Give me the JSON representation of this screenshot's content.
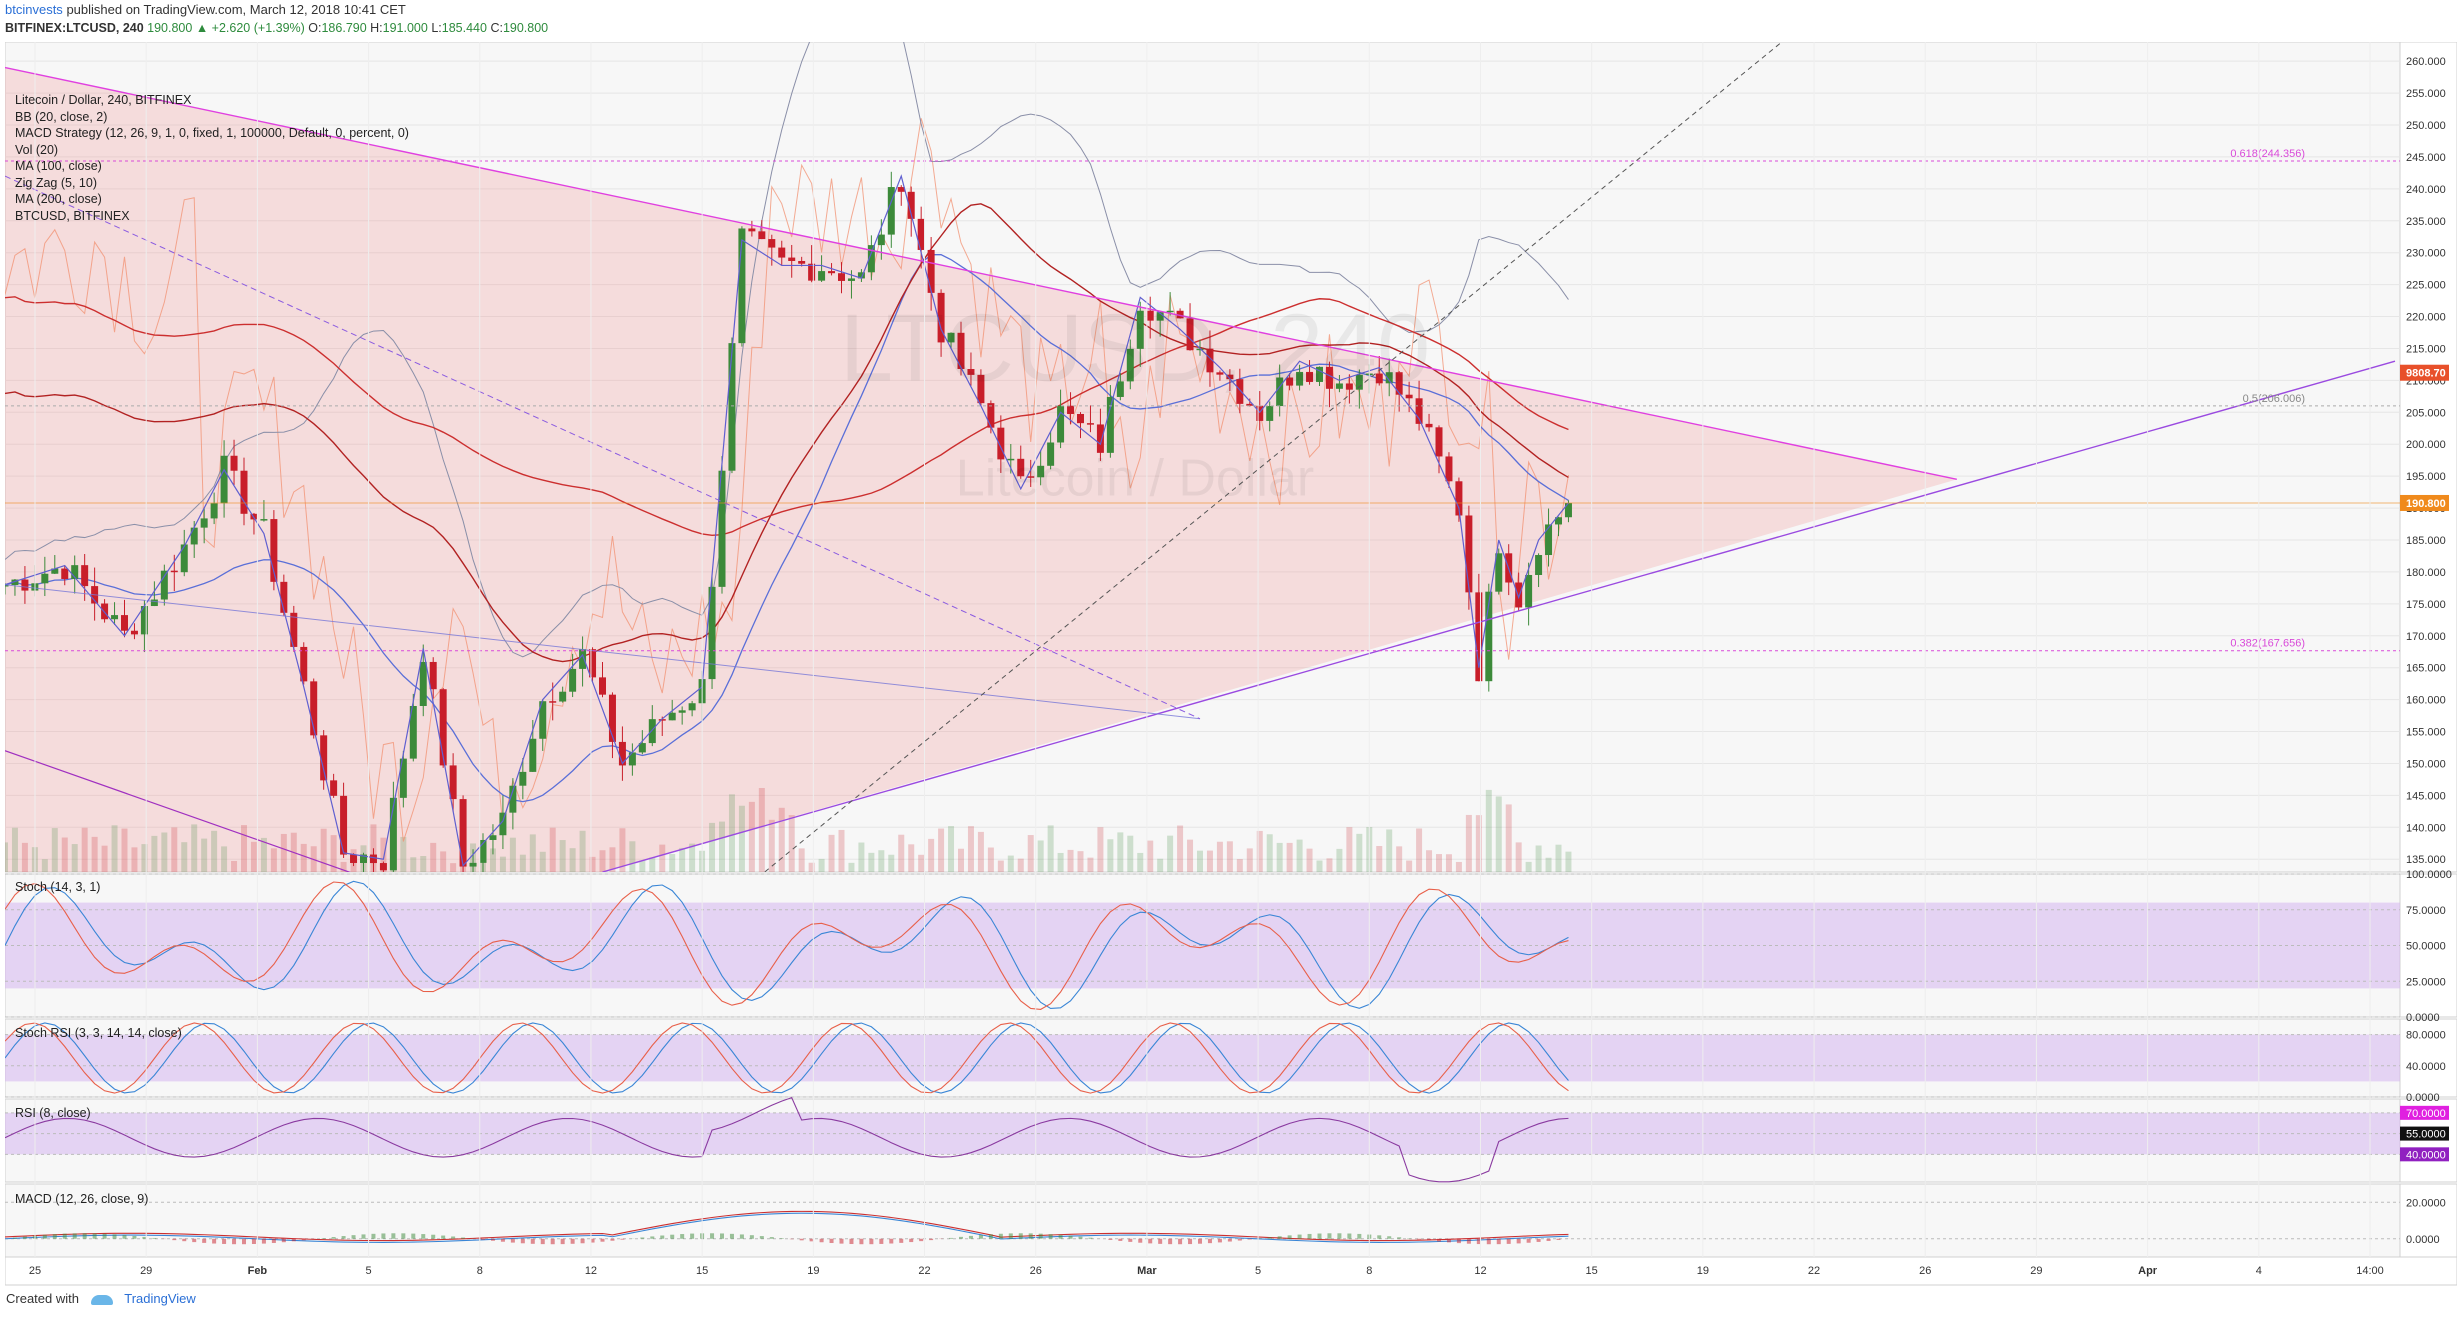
{
  "header": {
    "user": "btcinvests",
    "published_text": "published on TradingView.com, March 12, 2018 10:41 CET",
    "symbol_line": "BITFINEX:LTCUSD, 240",
    "last": "190.800",
    "change": "▲ +2.620 (+1.39%)",
    "open_label": "O:",
    "open": "186.790",
    "high_label": "H:",
    "high": "191.000",
    "low_label": "L:",
    "low": "185.440",
    "close_label": "C:",
    "close": "190.800"
  },
  "indicators": [
    "Litecoin / Dollar, 240, BITFINEX",
    "BB (20, close, 2)",
    "MACD Strategy (12, 26, 9, 1, 0, fixed, 1, 100000, Default, 0, percent, 0)",
    "Vol (20)",
    "MA (100, close)",
    "Zig Zag (5, 10)",
    "MA (200, close)",
    "BTCUSD, BITFINEX"
  ],
  "watermark": {
    "symbol": "LTCUSD, 240",
    "name": "Litecoin / Dollar"
  },
  "colors": {
    "up": "#3c8a3a",
    "down": "#c81e2a",
    "triangle": "#e040e0",
    "fib": "#d94ad9",
    "bb": "#8a8fa8",
    "ma100": "#b22222",
    "ma200": "#cc2f2f",
    "zigzag": "#5f5fd0",
    "btc": "#f29070",
    "stoch_k": "#3a86d6",
    "stoch_d": "#e8604a",
    "rsi": "#8a3aa0",
    "band": "#d6b7f0",
    "price_tag": "#f08a1c",
    "btc_tag": "#e8502a"
  },
  "chart_data": [
    {
      "type": "candlestick",
      "title": "Litecoin / Dollar, 240, BITFINEX",
      "ylim": [
        133,
        263
      ],
      "x_ticks": [
        "25",
        "29",
        "Feb",
        "5",
        "8",
        "12",
        "15",
        "19",
        "22",
        "26",
        "Mar",
        "5",
        "8",
        "12",
        "15",
        "19",
        "22",
        "26",
        "29",
        "Apr",
        "4",
        "14:00"
      ],
      "y_ticks": [
        "135.000",
        "140.000",
        "145.000",
        "150.000",
        "155.000",
        "160.000",
        "165.000",
        "170.000",
        "175.000",
        "180.000",
        "185.000",
        "190.000",
        "195.000",
        "200.000",
        "205.000",
        "210.000",
        "215.000",
        "220.000",
        "225.000",
        "230.000",
        "235.000",
        "240.000",
        "245.000",
        "250.000",
        "255.000",
        "260.000"
      ],
      "price_path": [
        [
          0,
          178
        ],
        [
          6,
          181
        ],
        [
          12,
          170
        ],
        [
          18,
          184
        ],
        [
          22,
          196
        ],
        [
          26,
          186
        ],
        [
          30,
          162
        ],
        [
          34,
          136
        ],
        [
          38,
          135
        ],
        [
          42,
          168
        ],
        [
          46,
          134
        ],
        [
          50,
          141
        ],
        [
          54,
          160
        ],
        [
          58,
          167
        ],
        [
          62,
          150
        ],
        [
          66,
          157
        ],
        [
          70,
          162
        ],
        [
          74,
          232
        ],
        [
          78,
          228
        ],
        [
          82,
          228
        ],
        [
          86,
          226
        ],
        [
          90,
          242
        ],
        [
          94,
          218
        ],
        [
          98,
          206
        ],
        [
          102,
          193
        ],
        [
          106,
          205
        ],
        [
          110,
          200
        ],
        [
          114,
          223
        ],
        [
          118,
          218
        ],
        [
          122,
          212
        ],
        [
          126,
          205
        ],
        [
          130,
          213
        ],
        [
          134,
          210
        ],
        [
          138,
          212
        ],
        [
          142,
          204
        ],
        [
          146,
          190
        ],
        [
          148,
          165
        ],
        [
          150,
          185
        ],
        [
          152,
          176
        ],
        [
          154,
          185
        ],
        [
          157,
          190.8
        ]
      ],
      "x_span": 240,
      "current_price": 190.8,
      "current_price_label": "190.800",
      "btc_price_label": "9808.70",
      "fib_levels": [
        {
          "price": 244.356,
          "label": "0.618(244.356)"
        },
        {
          "price": 206.006,
          "label": "0.5(206.006)"
        },
        {
          "price": 167.656,
          "label": "0.382(167.656)"
        }
      ],
      "triangle_upper": [
        [
          0,
          259
        ],
        [
          196,
          194.5
        ]
      ],
      "triangle_lower": [
        [
          60,
          133
        ],
        [
          240,
          213
        ]
      ]
    },
    {
      "type": "line",
      "name": "Stoch (14, 3, 1)",
      "ylim": [
        0,
        100
      ],
      "y_ticks": [
        "0.0000",
        "25.0000",
        "50.0000",
        "75.0000",
        "100.0000"
      ],
      "band": [
        20,
        80
      ]
    },
    {
      "type": "line",
      "name": "Stoch RSI (3, 3, 14, 14, close)",
      "ylim": [
        0,
        100
      ],
      "y_ticks": [
        "0.0000",
        "40.0000",
        "80.0000"
      ],
      "band": [
        20,
        80
      ]
    },
    {
      "type": "line",
      "name": "RSI (8, close)",
      "ylim": [
        20,
        80
      ],
      "y_ticks": [
        "40.0000",
        "55.0000",
        "70.0000"
      ],
      "band": [
        40,
        70
      ]
    },
    {
      "type": "line",
      "name": "MACD (12, 26, close, 9)",
      "ylim": [
        -10,
        30
      ],
      "y_ticks": [
        "0.0000",
        "20.0000"
      ]
    }
  ],
  "footer": {
    "created": "Created with",
    "brand": "TradingView"
  }
}
